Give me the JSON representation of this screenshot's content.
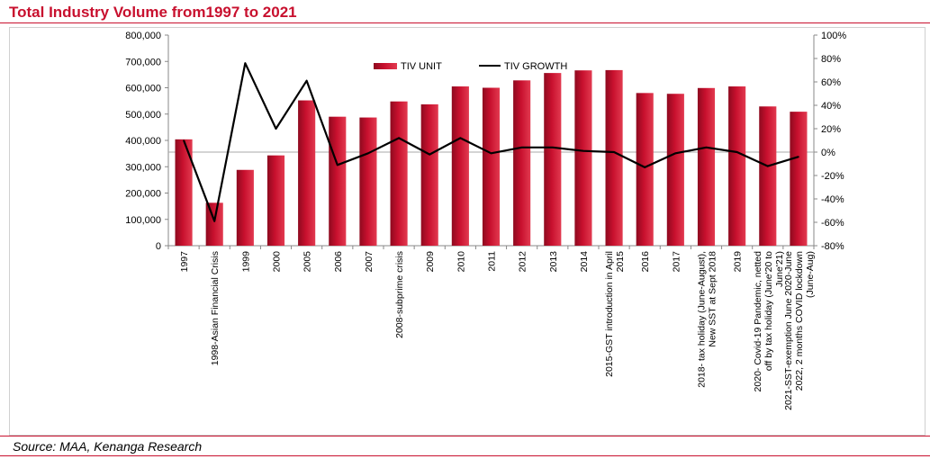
{
  "header": {
    "title": "Total Industry Volume from1997 to 2021"
  },
  "footer": {
    "source": "Source: MAA, Kenanga Research"
  },
  "colors": {
    "accent": "#c8102e",
    "bar": "#c8102e",
    "line": "#000000"
  },
  "chart_data": {
    "type": "bar",
    "categories": [
      "1997",
      "1998-Asian Financial Crisis",
      "1999",
      "2000",
      "2005",
      "2006",
      "2007",
      "2008-subprime crisis",
      "2009",
      "2010",
      "2011",
      "2012",
      "2013",
      "2014",
      "2015-GST introduction in April 2015",
      "2016",
      "2017",
      "2018- tax holiday (June-August), New SST at Sept 2018",
      "2019",
      "2020- Covid-19 Pandemic, netted off by tax holiday (June'20 to June'21)",
      "2021-SST-exemption June 2020-June 2022, 2 months COVID lockdown (June-Aug)"
    ],
    "series": [
      {
        "name": "TIV UNIT",
        "type": "bar",
        "axis": "left",
        "values": [
          404000,
          163000,
          288000,
          343000,
          552000,
          490000,
          487000,
          548000,
          537000,
          605000,
          600000,
          628000,
          656000,
          666000,
          667000,
          580000,
          577000,
          599000,
          605000,
          529000,
          509000
        ]
      },
      {
        "name": "TIV GROWTH",
        "type": "line",
        "axis": "right",
        "values": [
          10,
          -59,
          76,
          20,
          61,
          -11,
          -1,
          12,
          -2,
          12,
          -1,
          4,
          4,
          1,
          0,
          -13,
          -1,
          4,
          0,
          -12,
          -4
        ]
      }
    ],
    "y_left": {
      "ylim": [
        0,
        800000
      ],
      "ticks": [
        "800,000",
        "700,000",
        "600,000",
        "500,000",
        "400,000",
        "300,000",
        "200,000",
        "100,000",
        "0"
      ]
    },
    "y_right": {
      "ylim": [
        -80,
        100
      ],
      "ticks": [
        "100%",
        "80%",
        "60%",
        "40%",
        "20%",
        "0%",
        "-20%",
        "-40%",
        "-60%",
        "-80%"
      ]
    },
    "legend": {
      "position": "top-center"
    },
    "grid": false
  }
}
